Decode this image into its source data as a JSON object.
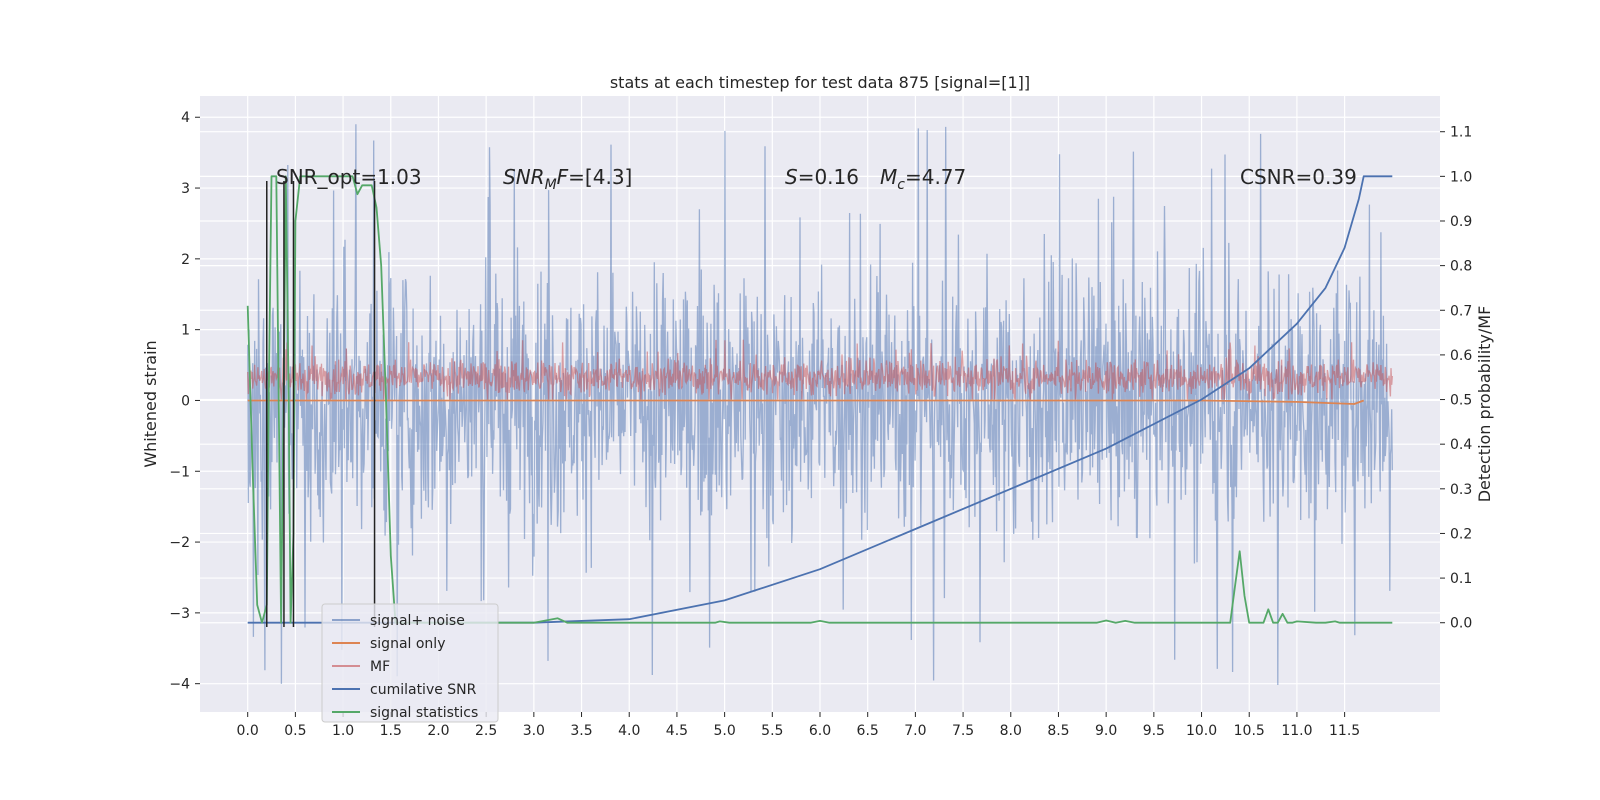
{
  "chart_data": {
    "type": "line",
    "title": "stats at each timestep for test data 875 [signal=[1]]",
    "xlabel": "",
    "ylabel": "Whitened strain",
    "y2label": "Detection probability/MF",
    "xlim": [
      -0.5,
      12.5
    ],
    "ylim": [
      -4.4,
      4.3
    ],
    "y2lim": [
      -0.2,
      1.18
    ],
    "xticks": [
      "0.0",
      "0.5",
      "1.0",
      "1.5",
      "2.0",
      "2.5",
      "3.0",
      "3.5",
      "4.0",
      "4.5",
      "5.0",
      "5.5",
      "6.0",
      "6.5",
      "7.0",
      "7.5",
      "8.0",
      "8.5",
      "9.0",
      "9.5",
      "10.0",
      "10.5",
      "11.0",
      "11.5"
    ],
    "yticks": [
      "4",
      "3",
      "2",
      "1",
      "0",
      "−1",
      "−2",
      "−3",
      "−4"
    ],
    "y2ticks": [
      "1.1",
      "1.0",
      "0.9",
      "0.8",
      "0.7",
      "0.6",
      "0.5",
      "0.4",
      "0.3",
      "0.2",
      "0.1",
      "0.0"
    ],
    "grid": true,
    "legend_position": "lower-left",
    "annotations": {
      "snr_opt": "SNR_opt=1.03",
      "snr_mf_italic": "SNR",
      "snr_mf_sub": "M",
      "snr_mf_italic2": "F",
      "snr_mf_value": "=[4.3]",
      "s_italic": "S",
      "s_value": "=0.16",
      "mc_italic": "M",
      "mc_sub": "c",
      "mc_value": "=4.77",
      "csnr": "CSNR=0.39"
    },
    "series": [
      {
        "name": "signal+ noise",
        "axis": "left",
        "color": "#4c72b0",
        "style": "noise",
        "x_range": [
          0.0,
          12.0
        ],
        "envelope": [
          -2.3,
          2.3
        ],
        "peaks": [
          -4.1,
          3.9
        ]
      },
      {
        "name": "signal only",
        "axis": "left",
        "color": "#dd8452",
        "x": [
          0.0,
          2.0,
          4.0,
          6.0,
          8.0,
          10.0,
          11.0,
          11.6,
          11.7
        ],
        "y": [
          0.0,
          0.0,
          0.0,
          0.0,
          0.0,
          0.0,
          -0.02,
          -0.05,
          0.0
        ]
      },
      {
        "name": "MF",
        "axis": "right",
        "color": "#c44e52",
        "style": "noise",
        "x_range": [
          0.0,
          12.0
        ],
        "envelope": [
          0.5,
          0.6
        ],
        "peaks": [
          0.5,
          0.67
        ]
      },
      {
        "name": "cumilative SNR",
        "axis": "right",
        "color": "#4c72b0",
        "x": [
          0.0,
          3.0,
          4.0,
          5.0,
          6.0,
          7.0,
          8.0,
          9.0,
          10.0,
          10.5,
          11.0,
          11.3,
          11.5,
          11.65,
          11.7,
          12.0
        ],
        "y": [
          0.0,
          0.0,
          0.008,
          0.05,
          0.12,
          0.21,
          0.3,
          0.39,
          0.5,
          0.57,
          0.67,
          0.75,
          0.84,
          0.95,
          1.0,
          1.0
        ]
      },
      {
        "name": "signal statistics",
        "axis": "right",
        "color": "#55a868",
        "x": [
          0.0,
          0.05,
          0.1,
          0.15,
          0.2,
          0.22,
          0.25,
          0.3,
          0.35,
          0.38,
          0.4,
          0.43,
          0.45,
          0.48,
          0.5,
          0.55,
          0.6,
          0.9,
          1.0,
          1.1,
          1.15,
          1.2,
          1.3,
          1.35,
          1.4,
          1.45,
          1.5,
          1.55,
          2.0,
          3.0,
          3.25,
          3.35,
          4.9,
          4.95,
          5.05,
          5.9,
          6.0,
          6.1,
          8.9,
          9.0,
          9.1,
          9.2,
          9.3,
          10.3,
          10.35,
          10.4,
          10.45,
          10.5,
          10.6,
          10.65,
          10.7,
          10.75,
          10.8,
          10.85,
          10.9,
          10.95,
          11.0,
          11.2,
          11.3,
          11.4,
          11.45,
          11.5,
          11.6,
          11.7,
          11.8,
          11.9,
          12.0
        ],
        "y": [
          0.71,
          0.35,
          0.04,
          0.0,
          0.04,
          0.5,
          1.0,
          1.0,
          0.0,
          0.55,
          1.0,
          0.5,
          0.0,
          0.2,
          0.9,
          1.0,
          1.0,
          1.0,
          1.0,
          1.0,
          0.96,
          0.98,
          0.98,
          0.93,
          0.8,
          0.5,
          0.15,
          0.0,
          0.0,
          0.0,
          0.01,
          0.0,
          0.0,
          0.003,
          0.0,
          0.0,
          0.004,
          0.0,
          0.0,
          0.005,
          0.0,
          0.004,
          0.0,
          0.0,
          0.08,
          0.16,
          0.06,
          0.0,
          0.0,
          0.0,
          0.03,
          0.0,
          0.0,
          0.02,
          0.0,
          0.0,
          0.003,
          0.0,
          0.0,
          0.003,
          0.0,
          0.0,
          0.0,
          0.0,
          0.0,
          0.0,
          0.0
        ]
      }
    ],
    "vertical_lines": {
      "color": "#222222",
      "x": [
        0.2,
        0.38,
        0.48,
        1.33
      ],
      "y_from": -3.2,
      "y_to": 3.1
    }
  }
}
